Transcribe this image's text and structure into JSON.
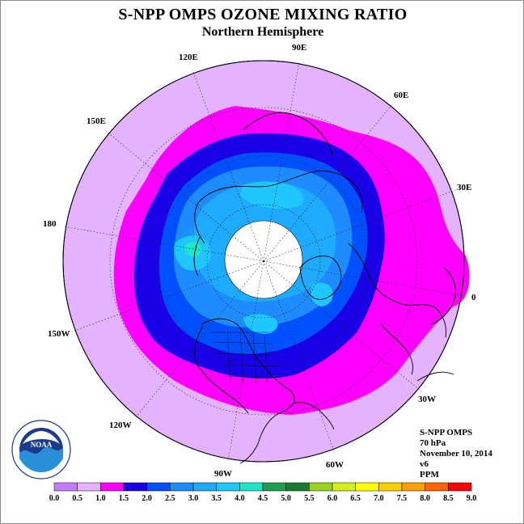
{
  "title": "S-NPP OMPS OZONE MIXING RATIO",
  "subtitle": "Northern Hemisphere",
  "longitude_labels": [
    "90E",
    "60E",
    "30E",
    "0",
    "30W",
    "60W",
    "90W",
    "120W",
    "150W",
    "180",
    "150E",
    "120E"
  ],
  "info": {
    "instrument": "S-NPP OMPS",
    "pressure_level": "70 hPa",
    "date": "November 10, 2014",
    "version": "v6",
    "units": "PPM"
  },
  "colorbar": {
    "ticks": [
      "0.0",
      "0.5",
      "1.0",
      "1.5",
      "2.0",
      "2.5",
      "3.0",
      "3.5",
      "4.0",
      "4.5",
      "5.0",
      "5.5",
      "6.0",
      "6.5",
      "7.0",
      "7.5",
      "8.0",
      "8.5",
      "9.0"
    ],
    "colors": [
      "#c27dff",
      "#e3b3ff",
      "#ff00ff",
      "#1a00e6",
      "#0050ff",
      "#1e8cff",
      "#1eaaff",
      "#1ec8ff",
      "#1ee6c8",
      "#1ea050",
      "#1a7a30",
      "#9ad21e",
      "#d2f01e",
      "#ffff00",
      "#ffd000",
      "#ffa000",
      "#ff6400",
      "#ff0000",
      "#8b5a3c"
    ]
  },
  "ozone_levels": [
    {
      "range": "1.0-1.5",
      "color": "#ff00ff"
    },
    {
      "range": "1.5-2.0",
      "color": "#1a00e6"
    },
    {
      "range": "2.0-2.5",
      "color": "#0050ff"
    },
    {
      "range": "2.5-3.0",
      "color": "#1e8cff"
    },
    {
      "range": "3.0-3.5",
      "color": "#1eaaff"
    },
    {
      "range": "3.5-4.0",
      "color": "#1ec8ff"
    },
    {
      "range": "4.0-4.5",
      "color": "#1ee6c8"
    }
  ],
  "logo": {
    "text": "NOAA"
  },
  "colors": {
    "background_field": "#e3b3ff",
    "no_data": "#ffffff",
    "coastline": "#000000"
  }
}
